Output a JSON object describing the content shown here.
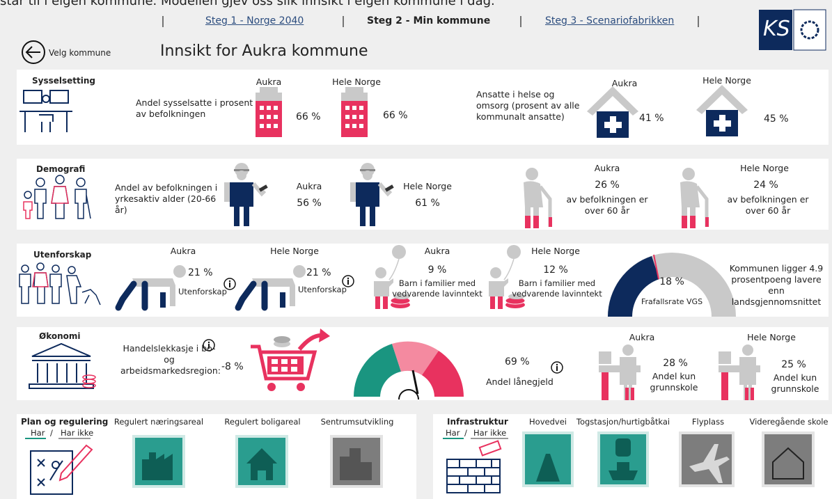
{
  "intro": "står til i eigen kommune. Modellen gjev oss slik innsikt i eigen kommune i dag.",
  "nav": [
    "Steg 1 - Norge 2040",
    "Steg 2 - Min kommune",
    "Steg 3 - Scenariofabrikken"
  ],
  "logo": "KS",
  "back": "Velg kommune",
  "title": "Innsikt for Aukra kommune",
  "sysselsetting": {
    "title": "Sysselsetting",
    "employment_label": "Andel sysselsatte i prosent av befolkningen",
    "employment": [
      {
        "place": "Aukra",
        "value": "66 %"
      },
      {
        "place": "Hele Norge",
        "value": "66 %"
      }
    ],
    "health_label": "Ansatte i helse og omsorg (prosent av alle kommunalt ansatte)",
    "health": [
      {
        "place": "Aukra",
        "value": "41 %"
      },
      {
        "place": "Hele Norge",
        "value": "45 %"
      }
    ]
  },
  "demografi": {
    "title": "Demografi",
    "working_label": "Andel av befolkningen i yrkesaktiv alder (20-66 år)",
    "working": [
      {
        "place": "Aukra",
        "value": "56 %"
      },
      {
        "place": "Hele Norge",
        "value": "61 %"
      }
    ],
    "elderly": [
      {
        "place": "Aukra",
        "value": "26 %",
        "label": "av befolkningen er over 60 år"
      },
      {
        "place": "Hele Norge",
        "value": "24 %",
        "label": "av befolkningen er over 60 år"
      }
    ]
  },
  "utenforskap": {
    "title": "Utenforskap",
    "outside": [
      {
        "place": "Aukra",
        "value": "21 %",
        "label": "Utenforskap"
      },
      {
        "place": "Hele Norge",
        "value": "21 %",
        "label": "Utenforskap"
      }
    ],
    "children": [
      {
        "place": "Aukra",
        "value": "9 %",
        "label": "Barn i familier med vedvarende lavinntekt"
      },
      {
        "place": "Hele Norge",
        "value": "12 %",
        "label": "Barn i familier med vedvarende lavinntekt"
      }
    ],
    "dropout": {
      "value": "18 %",
      "label": "Frafallsrate VGS"
    },
    "comparison": "Kommunen ligger 4.9 prosentpoeng lavere enn landsgjennomsnittet"
  },
  "okonomi": {
    "title": "Økonomi",
    "leak_label": "Handelslekkasje i bo- og arbeidsmarkedsregion:",
    "leak_value": "-8 %",
    "debt_value": "69 %",
    "debt_label": "Andel lånegjeld",
    "school": [
      {
        "place": "Aukra",
        "value": "28 %",
        "label": "Andel kun grunnskole"
      },
      {
        "place": "Hele Norge",
        "value": "25 %",
        "label": "Andel kun grunnskole"
      }
    ]
  },
  "plan": {
    "title": "Plan og regulering",
    "has": "Har",
    "sep": "/",
    "has_not": "Har ikke",
    "items": [
      "Regulert næringsareal",
      "Regulert boligareal",
      "Sentrumsutvikling"
    ]
  },
  "infrastruktur": {
    "title": "Infrastruktur",
    "has": "Har",
    "sep": "/",
    "has_not": "Har ikke",
    "items": [
      "Hovedvei",
      "Togstasjon/hurtigbåtkai",
      "Flyplass",
      "Videregående skole"
    ]
  }
}
